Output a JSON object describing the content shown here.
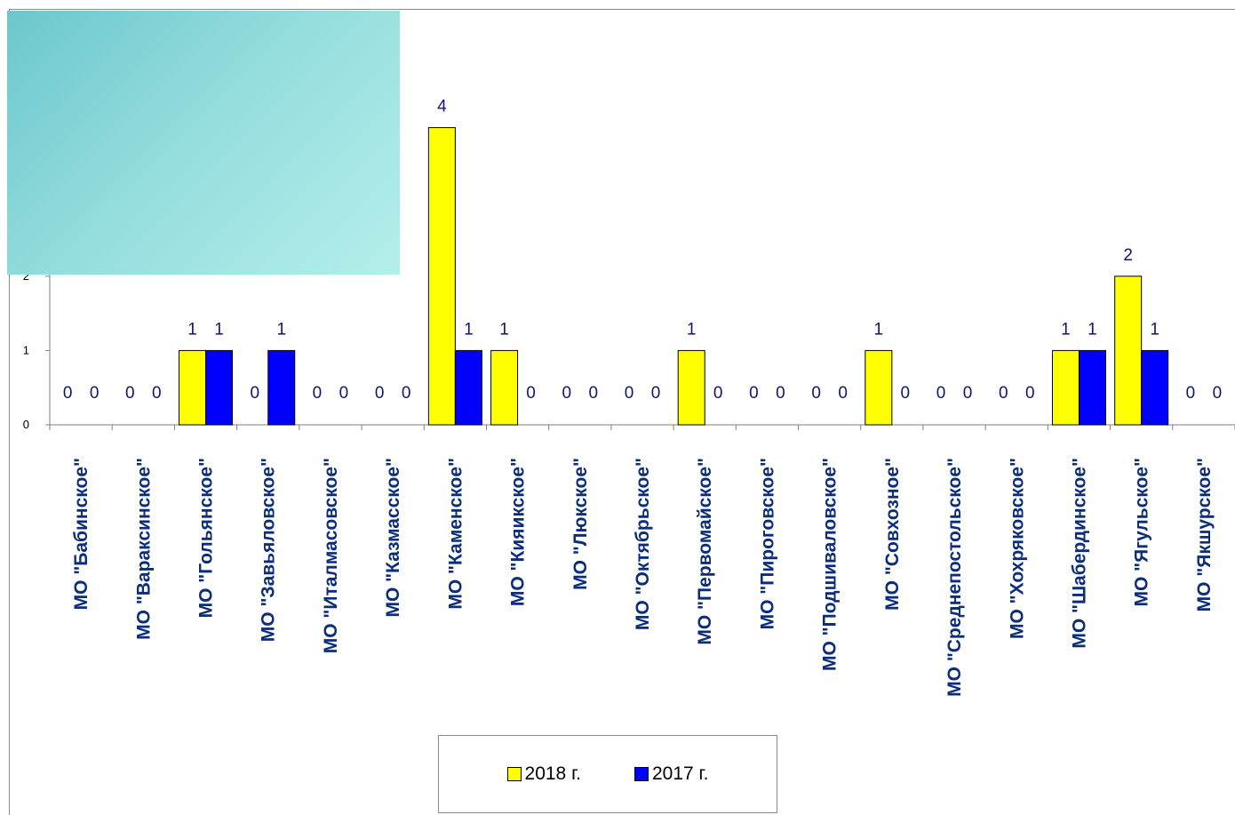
{
  "chart_data": {
    "type": "bar",
    "categories": [
      "МО \"Бабинское\"",
      "МО \"Вараксинское\"",
      "МО \"Гольянское\"",
      "МО \"Завьяловское\"",
      "МО \"Италмасовское\"",
      "МО \"Казмасское\"",
      "МО \"Каменское\"",
      "МО \"Кияикское\"",
      "МО \"Люкское\"",
      "МО \"Октябрьское\"",
      "МО \"Первомайское\"",
      "МО \"Пироговское\"",
      "МО \"Подшиваловское\"",
      "МО \"Совхозное\"",
      "МО \"Среднепостольское\"",
      "МО \"Хохряковское\"",
      "МО \"Шабердинское\"",
      "МО \"Ягульское\"",
      "МО \"Якшурское\""
    ],
    "series": [
      {
        "name": "2018 г.",
        "color": "#ffff00",
        "values": [
          0,
          0,
          1,
          0,
          0,
          0,
          4,
          1,
          0,
          0,
          1,
          0,
          0,
          1,
          0,
          0,
          1,
          2,
          0
        ]
      },
      {
        "name": "2017 г.",
        "color": "#0000ff",
        "values": [
          0,
          0,
          1,
          1,
          0,
          0,
          1,
          0,
          0,
          0,
          0,
          0,
          0,
          0,
          0,
          0,
          1,
          1,
          0
        ]
      }
    ],
    "ylim": [
      0,
      5
    ],
    "yticks": [
      "0",
      "1",
      "2",
      "3",
      "4",
      "5"
    ],
    "xlabel": "",
    "ylabel": "",
    "legend_position": "bottom"
  }
}
